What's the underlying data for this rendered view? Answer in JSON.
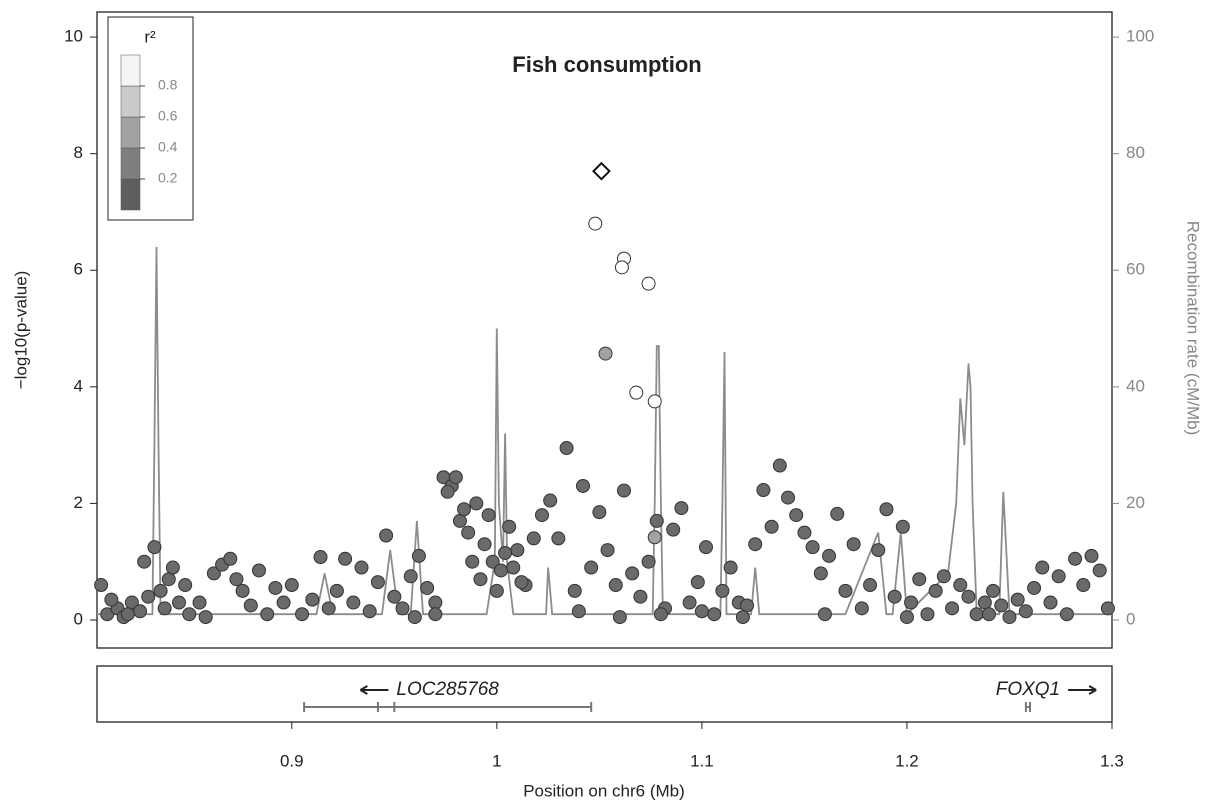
{
  "chart_data": {
    "type": "locuszoom",
    "title": "Fish consumption",
    "xlabel": "Position on chr6 (Mb)",
    "ylabel": "−log10(p-value)",
    "y2label": "Recombination rate (cM/Mb)",
    "xlim": [
      0.805,
      1.3
    ],
    "xticks": [
      0.9,
      1,
      1.1,
      1.2,
      1.3
    ],
    "ylim": [
      -0.48,
      10.43
    ],
    "yticks": [
      0,
      2,
      4,
      6,
      8,
      10
    ],
    "y2lim": [
      -4.8,
      104.3
    ],
    "y2ticks": [
      0,
      20,
      40,
      60,
      80,
      100
    ],
    "legend": {
      "title": "r²",
      "lim": [
        0,
        1
      ],
      "ticks": [
        0.2,
        0.4,
        0.6,
        0.8
      ],
      "colors": [
        "#5e5e5e",
        "#7e7e7e",
        "#a2a2a2",
        "#cacaca",
        "#f4f4f4"
      ]
    },
    "series": [
      {
        "color": "#6a6a6a",
        "marker": "circle",
        "x": [
          0.807,
          0.81,
          0.815,
          0.818,
          0.822,
          0.826,
          0.83,
          0.833,
          0.836,
          0.84,
          0.842,
          0.845,
          0.82,
          0.828,
          0.838,
          0.812,
          0.848,
          0.85,
          0.855,
          0.858,
          0.862,
          0.866,
          0.87,
          0.873,
          0.876,
          0.88,
          0.884,
          0.888,
          0.892,
          0.896,
          0.9,
          0.905,
          0.91,
          0.914,
          0.918,
          0.922,
          0.926,
          0.93,
          0.934,
          0.938,
          0.942,
          0.946,
          0.95,
          0.954,
          0.958,
          0.962,
          0.966,
          0.97,
          0.974,
          0.978,
          0.982,
          0.986,
          0.99,
          0.994,
          0.998,
          1.002,
          1.006,
          1.01,
          1.014,
          1.018,
          0.976,
          0.98,
          0.984,
          0.988,
          0.992,
          0.996,
          1.0,
          1.004,
          1.008,
          1.012,
          1.022,
          1.026,
          1.03,
          1.034,
          1.038,
          1.042,
          1.046,
          1.05,
          1.054,
          1.058,
          1.062,
          1.066,
          1.07,
          1.074,
          1.078,
          1.082,
          1.086,
          1.09,
          1.094,
          1.098,
          1.102,
          1.106,
          1.11,
          1.114,
          1.118,
          1.122,
          1.126,
          1.13,
          1.134,
          1.138,
          1.142,
          1.146,
          1.15,
          1.154,
          1.158,
          1.162,
          1.166,
          1.17,
          1.174,
          1.178,
          1.182,
          1.186,
          1.19,
          1.194,
          1.198,
          1.202,
          1.206,
          1.21,
          1.214,
          1.218,
          1.222,
          1.226,
          1.23,
          1.234,
          1.238,
          1.242,
          1.246,
          1.25,
          1.254,
          1.258,
          1.262,
          1.266,
          1.27,
          1.274,
          1.278,
          1.282,
          1.286,
          1.29,
          1.294,
          1.298,
          0.96,
          0.97,
          1.04,
          1.06,
          1.08,
          1.1,
          1.12,
          1.16,
          1.2,
          1.24
        ],
        "values": [
          0.6,
          0.1,
          0.2,
          0.05,
          0.3,
          0.15,
          0.4,
          1.25,
          0.5,
          0.7,
          0.9,
          0.3,
          0.1,
          1.0,
          0.2,
          0.35,
          0.6,
          0.1,
          0.3,
          0.05,
          0.8,
          0.95,
          1.05,
          0.7,
          0.5,
          0.25,
          0.85,
          0.1,
          0.55,
          0.3,
          0.6,
          0.1,
          0.35,
          1.08,
          0.2,
          0.5,
          1.05,
          0.3,
          0.9,
          0.15,
          0.65,
          1.45,
          0.4,
          0.2,
          0.75,
          1.1,
          0.55,
          0.3,
          2.45,
          2.3,
          1.7,
          1.5,
          2.0,
          1.3,
          1.0,
          0.85,
          1.6,
          1.2,
          0.6,
          1.4,
          2.2,
          2.45,
          1.9,
          1.0,
          0.7,
          1.8,
          0.5,
          1.15,
          0.9,
          0.65,
          1.8,
          2.05,
          1.4,
          2.95,
          0.5,
          2.3,
          0.9,
          1.85,
          1.2,
          0.6,
          2.22,
          0.8,
          0.4,
          1.0,
          1.7,
          0.2,
          1.55,
          1.92,
          0.3,
          0.65,
          1.25,
          0.1,
          0.5,
          0.9,
          0.3,
          0.25,
          1.3,
          2.23,
          1.6,
          2.65,
          2.1,
          1.8,
          1.5,
          1.25,
          0.8,
          1.1,
          1.82,
          0.5,
          1.3,
          0.2,
          0.6,
          1.2,
          1.9,
          0.4,
          1.6,
          0.3,
          0.7,
          0.1,
          0.5,
          0.75,
          0.2,
          0.6,
          0.4,
          0.1,
          0.3,
          0.5,
          0.25,
          0.05,
          0.35,
          0.15,
          0.55,
          0.9,
          0.3,
          0.75,
          0.1,
          1.05,
          0.6,
          1.1,
          0.85,
          0.2,
          0.05,
          0.1,
          0.15,
          0.05,
          0.1,
          0.15,
          0.05,
          0.1,
          0.05,
          0.1
        ]
      },
      {
        "color": "#a2a2a2",
        "marker": "circle",
        "x": [
          1.053,
          1.077
        ],
        "values": [
          4.57,
          1.42
        ]
      },
      {
        "color": "#ffffff",
        "marker": "circle",
        "x": [
          1.048,
          1.062,
          1.061,
          1.074,
          1.068,
          1.077
        ],
        "values": [
          6.8,
          6.2,
          6.05,
          5.77,
          3.9,
          3.75
        ]
      },
      {
        "color": "#ffffff",
        "marker": "diamond",
        "x": [
          1.051
        ],
        "values": [
          7.7
        ]
      }
    ],
    "recombination": {
      "color": "#8c8c8c",
      "axis": "y2",
      "x": [
        0.805,
        0.832,
        0.833,
        0.834,
        0.835,
        0.836,
        0.86,
        0.912,
        0.916,
        0.92,
        0.944,
        0.948,
        0.952,
        0.958,
        0.961,
        0.964,
        0.995,
        0.999,
        1.0,
        1.001,
        1.003,
        1.004,
        1.005,
        1.008,
        1.024,
        1.025,
        1.027,
        1.076,
        1.077,
        1.078,
        1.079,
        1.08,
        1.081,
        1.109,
        1.11,
        1.111,
        1.112,
        1.124,
        1.126,
        1.128,
        1.17,
        1.186,
        1.19,
        1.193,
        1.197,
        1.2,
        1.22,
        1.224,
        1.226,
        1.228,
        1.23,
        1.231,
        1.232,
        1.234,
        1.245,
        1.247,
        1.25,
        1.3
      ],
      "values": [
        1,
        1,
        30,
        64,
        30,
        1,
        1,
        1,
        8,
        1,
        1,
        12,
        1,
        1,
        17,
        1,
        1,
        10,
        50,
        20,
        10,
        32,
        10,
        1,
        1,
        9,
        1,
        1,
        20,
        47,
        47,
        20,
        1,
        1,
        20,
        46,
        1,
        1,
        9,
        1,
        1,
        15,
        1,
        1,
        15,
        1,
        8,
        20,
        38,
        30,
        44,
        40,
        20,
        1,
        1,
        22,
        1,
        1
      ]
    },
    "genes": [
      {
        "name": "LOC285768",
        "start": 0.906,
        "end": 1.046,
        "exons": [
          0.942,
          0.95
        ],
        "strand": "-"
      },
      {
        "name": "FOXQ1",
        "start": 1.258,
        "end": 1.26,
        "exons": [],
        "strand": "+"
      }
    ]
  }
}
